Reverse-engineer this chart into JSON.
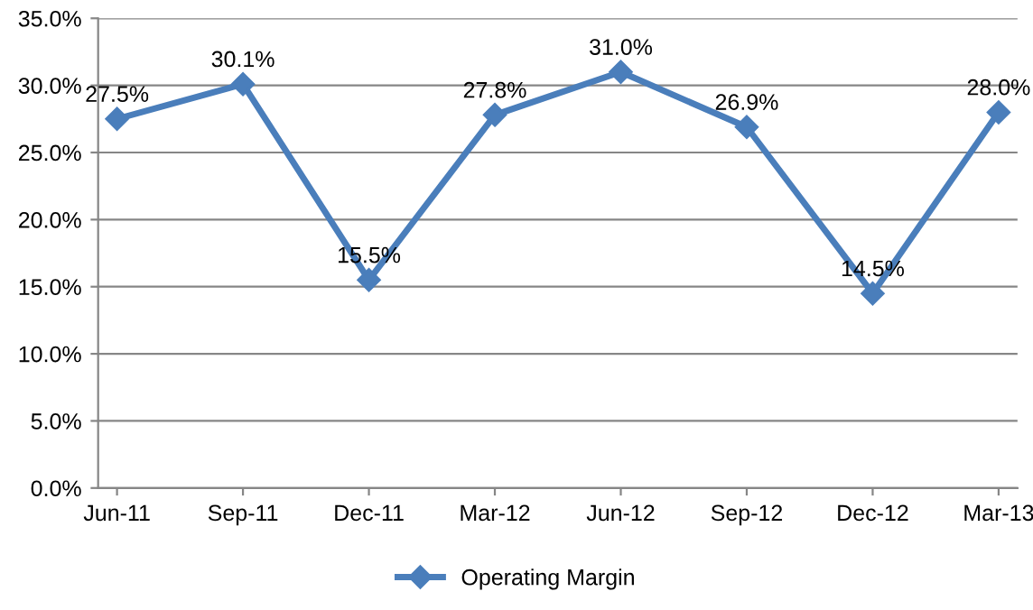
{
  "chart_data": {
    "type": "line",
    "categories": [
      "Jun-11",
      "Sep-11",
      "Dec-11",
      "Mar-12",
      "Jun-12",
      "Sep-12",
      "Dec-12",
      "Mar-13"
    ],
    "series": [
      {
        "name": "Operating Margin",
        "color": "#4a7ebb",
        "values": [
          27.5,
          30.1,
          15.5,
          27.8,
          31.0,
          26.9,
          14.5,
          28.0
        ],
        "value_labels": [
          "27.5%",
          "30.1%",
          "15.5%",
          "27.8%",
          "31.0%",
          "26.9%",
          "14.5%",
          "28.0%"
        ]
      }
    ],
    "ylim": [
      0,
      35
    ],
    "yticks": [
      {
        "value": 0,
        "label": "0.0%"
      },
      {
        "value": 5,
        "label": "5.0%"
      },
      {
        "value": 10,
        "label": "10.0%"
      },
      {
        "value": 15,
        "label": "15.0%"
      },
      {
        "value": 20,
        "label": "20.0%"
      },
      {
        "value": 25,
        "label": "25.0%"
      },
      {
        "value": 30,
        "label": "30.0%"
      },
      {
        "value": 35,
        "label": "35.0%"
      }
    ],
    "grid": "y",
    "legend": "bottom",
    "marker": "diamond",
    "line_style": "solid"
  }
}
